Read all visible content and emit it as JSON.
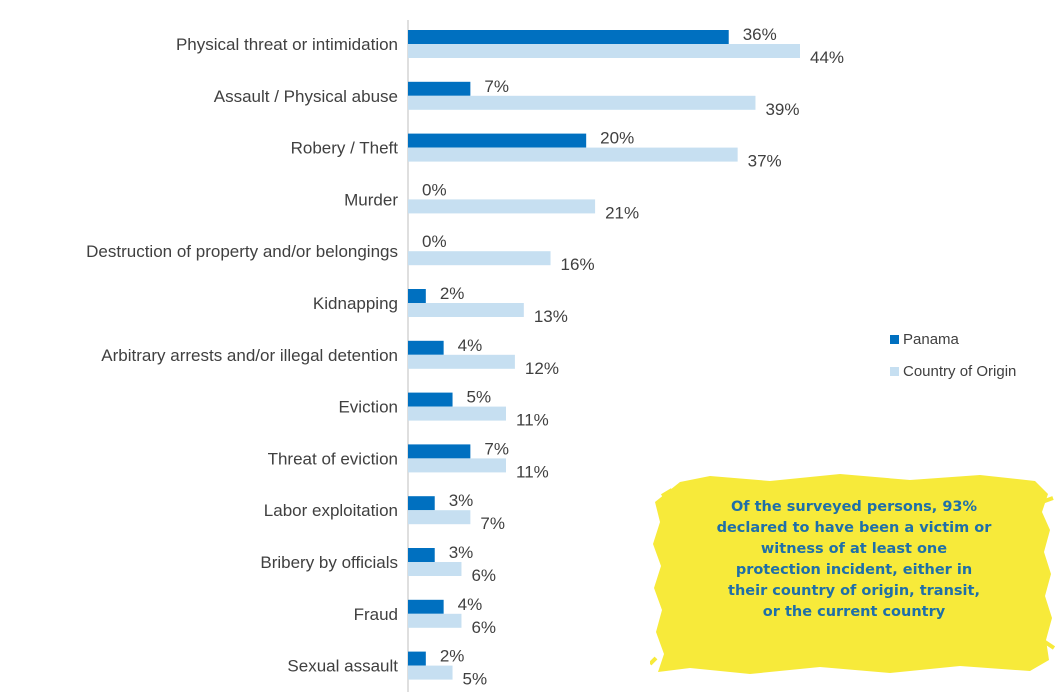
{
  "chart_data": {
    "type": "bar",
    "orientation": "horizontal",
    "categories": [
      "Physical threat or intimidation",
      "Assault / Physical abuse",
      "Robery / Theft",
      "Murder",
      "Destruction of property and/or belongings",
      "Kidnapping",
      "Arbitrary arrests and/or illegal detention",
      "Eviction",
      "Threat of eviction",
      "Labor exploitation",
      "Bribery by officials",
      "Fraud",
      "Sexual assault"
    ],
    "series": [
      {
        "name": "Panama",
        "color": "#0070c0",
        "values": [
          36,
          7,
          20,
          0,
          0,
          2,
          4,
          5,
          7,
          3,
          3,
          4,
          2
        ]
      },
      {
        "name": "Country of Origin",
        "color": "#c6dff1",
        "values": [
          44,
          39,
          37,
          21,
          16,
          13,
          12,
          11,
          11,
          7,
          6,
          6,
          5
        ]
      }
    ],
    "value_suffix": "%",
    "xlim": [
      0,
      50
    ],
    "grid": false,
    "legend_position": "right"
  },
  "callout": {
    "background": "#f7ea3a",
    "text_color": "#1f6fa8",
    "lines": [
      "Of the surveyed persons, 93%",
      "declared to have been a victim or",
      "witness of at least one",
      "protection incident, either in",
      "their country of origin, transit,",
      "or the current country"
    ]
  }
}
